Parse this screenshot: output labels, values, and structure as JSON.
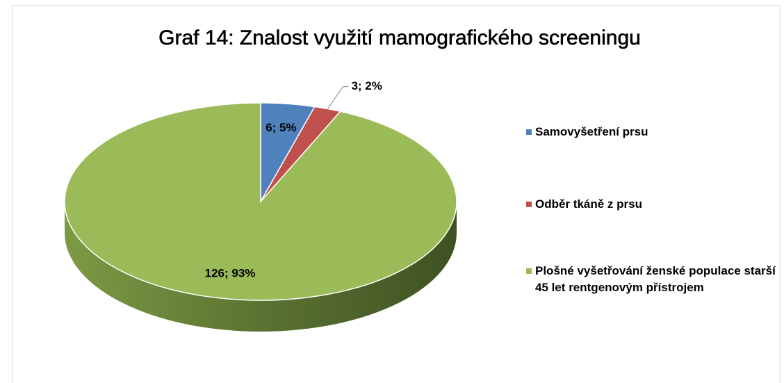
{
  "chart_data": {
    "type": "pie",
    "title": "Graf 14: Znalost využití mamografického screeningu",
    "categories": [
      "Samovyšetření prsu",
      "Odběr tkáně z prsu",
      "Plošné vyšetřování ženské populace starší 45 let rentgenovým přístrojem"
    ],
    "values": [
      6,
      3,
      126
    ],
    "value_labels": [
      "6; 5%",
      "3; 2%",
      "126; 93%"
    ],
    "colors": [
      "#4f81bd",
      "#c0504d",
      "#9bbb59"
    ],
    "legend": "right"
  }
}
